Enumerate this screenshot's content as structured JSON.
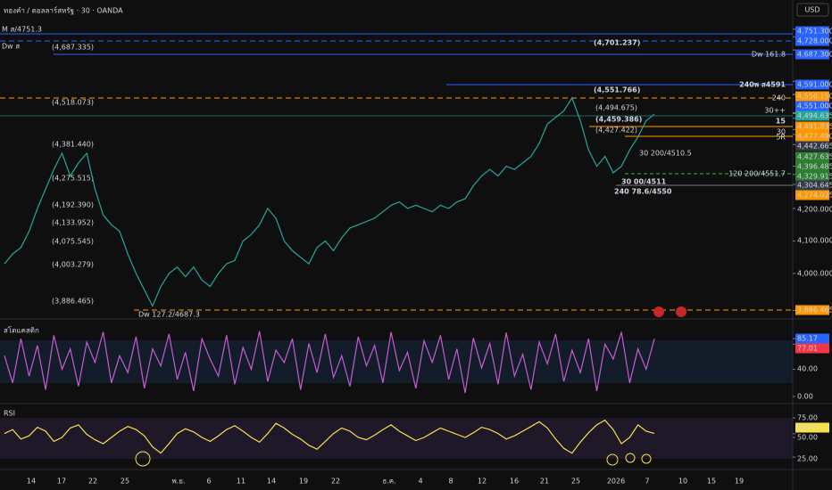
{
  "header": {
    "title": "ทองคำ / ดอลลาร์สหรัฐ · 30 · OANDA",
    "currency": "USD"
  },
  "price_pane": {
    "tags": [
      {
        "value": 4751.3,
        "label": "4,751.300"
      },
      {
        "value": 4728,
        "label": "4,728.000"
      },
      {
        "value": 4687.3,
        "label": "4,687.300"
      },
      {
        "value": 4591,
        "label": "4,591.000"
      },
      {
        "value": 4550.15,
        "label": "4,550.150"
      },
      {
        "value": 4551,
        "label": "4,551.000"
      },
      {
        "value": 4494.635,
        "label": "4,494.635"
      },
      {
        "value": 4491.835,
        "label": "4,491.835"
      },
      {
        "value": 4477.49,
        "label": "4,477.490"
      },
      {
        "value": 4442.665,
        "label": "4,442.665"
      },
      {
        "value": 4427.635,
        "label": "4,427.635"
      },
      {
        "value": 4396.485,
        "label": "4,396.485"
      },
      {
        "value": 4329.915,
        "label": "4,329.915"
      },
      {
        "value": 4304.645,
        "label": "4,304.645"
      },
      {
        "value": 4274.025,
        "label": "4,274.025"
      },
      {
        "value": 4200,
        "label": "4,200.000"
      },
      {
        "value": 4100,
        "label": "4,100.000"
      },
      {
        "value": 4000,
        "label": "4,000.000"
      },
      {
        "value": 3886.465,
        "label": "3,886.465"
      }
    ],
    "levels": [
      "M ส/4751.3",
      "Dw ส",
      "(4,687.335)",
      "(4,701.237)",
      "Dw 161.8",
      "240พ ส4591",
      "(4,551.766)",
      "240",
      "(4,518.073)",
      "30++",
      "(4,494.675)",
      "15",
      "(4,459.386)",
      "(4,427.422)",
      "30",
      "5R",
      "30 200/4510.5",
      "120 200/4551.7",
      "30 00/4511",
      "240 78.6/4550",
      "(4,381.440)",
      "(4,275.515)",
      "(4,192.390)",
      "(4,133.952)",
      "(4,075.545)",
      "(4,003.279)",
      "(3,886.465)",
      "Dw 127.2/4687.3"
    ],
    "price_path": [
      4030,
      4060,
      4080,
      4130,
      4200,
      4260,
      4320,
      4370,
      4300,
      4340,
      4370,
      4260,
      4180,
      4150,
      4130,
      4060,
      4000,
      3950,
      3900,
      3960,
      4000,
      4020,
      3990,
      4020,
      3980,
      3960,
      4000,
      4030,
      4040,
      4100,
      4120,
      4150,
      4200,
      4170,
      4100,
      4070,
      4050,
      4030,
      4080,
      4100,
      4070,
      4110,
      4140,
      4150,
      4160,
      4170,
      4190,
      4210,
      4220,
      4200,
      4210,
      4200,
      4190,
      4210,
      4200,
      4220,
      4230,
      4270,
      4300,
      4320,
      4300,
      4330,
      4320,
      4340,
      4360,
      4400,
      4460,
      4480,
      4500,
      4540,
      4470,
      4380,
      4330,
      4360,
      4310,
      4330,
      4380,
      4420,
      4470,
      4490
    ]
  },
  "stoch_pane": {
    "title": "สโตแคสติก",
    "tags": [
      {
        "value": 85.17,
        "label": "85.17"
      },
      {
        "value": 77.01,
        "label": "77.01"
      },
      {
        "value": 40,
        "label": "40.00"
      },
      {
        "value": 0,
        "label": "0.00"
      }
    ],
    "values": [
      60,
      20,
      85,
      30,
      75,
      10,
      90,
      40,
      70,
      15,
      80,
      50,
      95,
      20,
      60,
      35,
      88,
      12,
      70,
      45,
      92,
      25,
      65,
      8,
      85,
      55,
      30,
      90,
      18,
      72,
      40,
      96,
      22,
      68,
      50,
      85,
      10,
      78,
      35,
      92,
      28,
      60,
      15,
      88,
      45,
      75,
      20,
      95,
      38,
      65,
      12,
      82,
      50,
      90,
      25,
      70,
      5,
      86,
      42,
      78,
      18,
      94,
      30,
      62,
      10,
      80,
      48,
      92,
      22,
      68,
      35,
      85,
      8,
      77,
      55,
      95,
      20,
      70,
      40,
      85
    ]
  },
  "rsi_pane": {
    "title": "RSI",
    "tags": [
      {
        "value": 75,
        "label": "75.00"
      },
      {
        "value": 54.77,
        "label": "54.77"
      },
      {
        "value": 50,
        "label": "50.00"
      },
      {
        "value": 25,
        "label": "25.00"
      }
    ],
    "values": [
      55,
      60,
      48,
      52,
      63,
      58,
      45,
      50,
      62,
      66,
      54,
      47,
      42,
      50,
      58,
      64,
      60,
      52,
      38,
      30,
      42,
      55,
      61,
      57,
      50,
      45,
      52,
      60,
      65,
      58,
      50,
      44,
      55,
      68,
      62,
      54,
      48,
      40,
      35,
      45,
      55,
      62,
      58,
      50,
      47,
      53,
      60,
      66,
      58,
      52,
      46,
      50,
      56,
      62,
      58,
      54,
      50,
      56,
      63,
      60,
      55,
      48,
      52,
      58,
      64,
      70,
      62,
      48,
      36,
      30,
      44,
      56,
      66,
      72,
      60,
      42,
      50,
      66,
      58,
      55
    ]
  },
  "time_axis": [
    "14",
    "17",
    "22",
    "25",
    "พ.ย.",
    "6",
    "11",
    "14",
    "19",
    "22",
    "ธ.ค.",
    "4",
    "8",
    "12",
    "16",
    "21",
    "25",
    "2026",
    "7",
    "10",
    "15",
    "19"
  ]
}
